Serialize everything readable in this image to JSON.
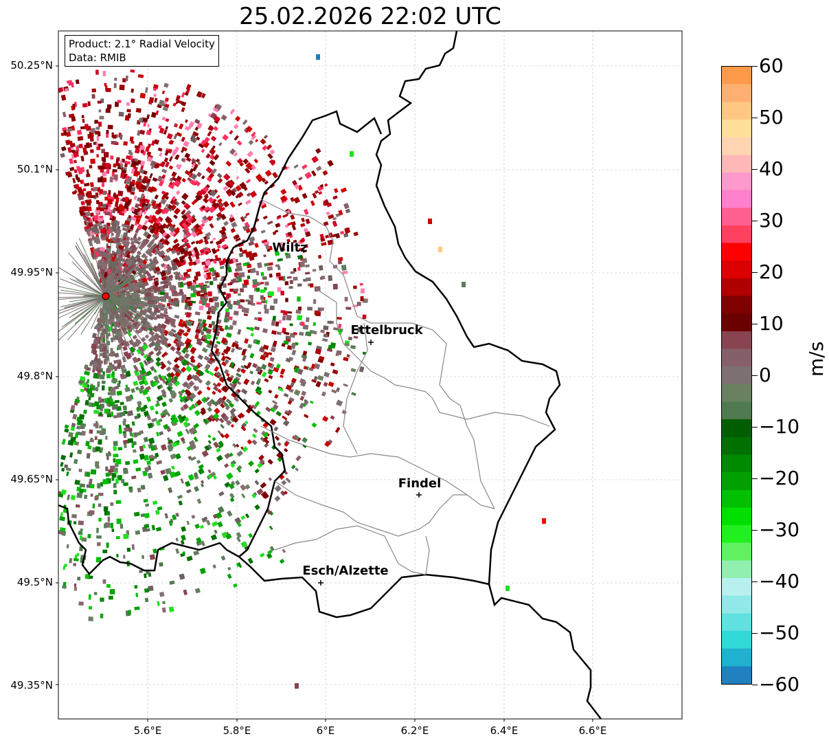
{
  "title": "25.02.2026 22:02 UTC",
  "info": {
    "product": "Product: 2.1° Radial Velocity",
    "data_source": "Data: RMIB"
  },
  "map": {
    "lat_labels": [
      "50.25°N",
      "50.1°N",
      "49.95°N",
      "49.8°N",
      "49.65°N",
      "49.5°N",
      "49.35°N"
    ],
    "lon_labels": [
      "5.6°E",
      "5.8°E",
      "6°E",
      "6.2°E",
      "6.4°E",
      "6.6°E"
    ],
    "radar_site_color": "#ff0000",
    "cities": [
      {
        "name": "Wiltz"
      },
      {
        "name": "Ettelbruck"
      },
      {
        "name": "Findel"
      },
      {
        "name": "Esch/Alzette"
      }
    ]
  },
  "colorbar": {
    "unit": "m/s",
    "ticks": [
      "60",
      "50",
      "40",
      "30",
      "20",
      "10",
      "0",
      "−10",
      "−20",
      "−30",
      "−40",
      "−50",
      "−60"
    ],
    "range": [
      -60,
      60
    ],
    "colors_top_to_bottom": [
      "#ff9a4a",
      "#ffb070",
      "#ffc880",
      "#ffe098",
      "#ffd4b0",
      "#ffb8b8",
      "#ff99cc",
      "#ff80cc",
      "#ff6090",
      "#ff4060",
      "#ff0000",
      "#dd0000",
      "#b00000",
      "#800000",
      "#6b0000",
      "#884450",
      "#866068",
      "#7d7070",
      "#6a8060",
      "#4f7a4f",
      "#005e00",
      "#007000",
      "#008a00",
      "#00a000",
      "#00c000",
      "#00e000",
      "#20f020",
      "#60f060",
      "#90f0b0",
      "#b8f0f0",
      "#90e8e8",
      "#60e0e0",
      "#30d8d8",
      "#20b0d0",
      "#2080c0"
    ]
  }
}
